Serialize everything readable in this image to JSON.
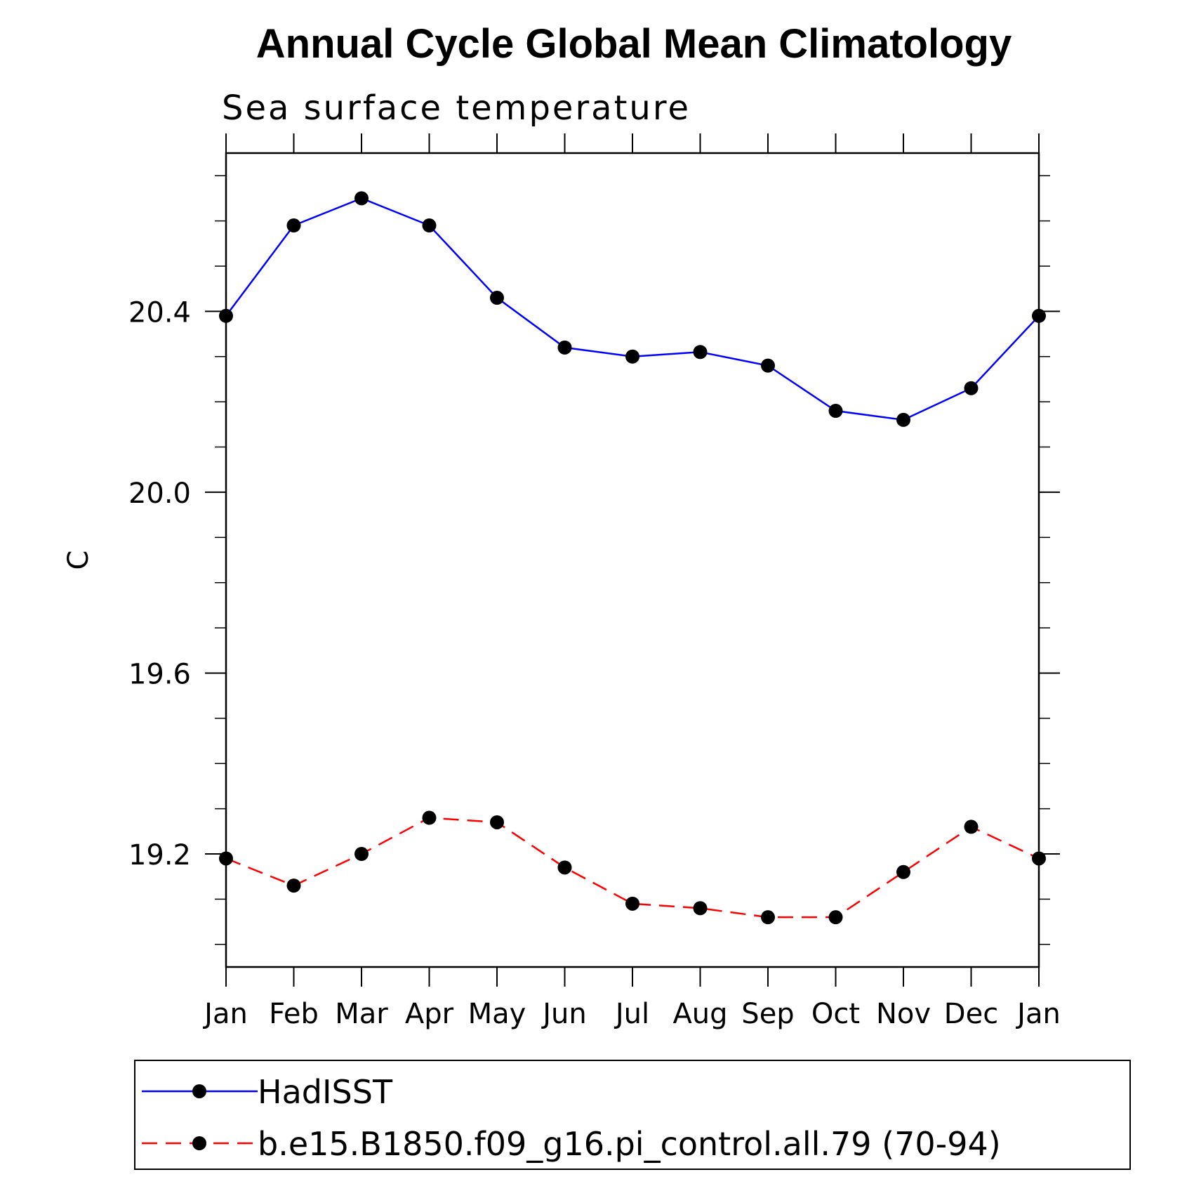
{
  "chart_data": {
    "type": "line",
    "title": "Annual Cycle Global Mean Climatology",
    "subtitle": "Sea surface temperature",
    "ylabel": "C",
    "xlabel": "",
    "categories": [
      "Jan",
      "Feb",
      "Mar",
      "Apr",
      "May",
      "Jun",
      "Jul",
      "Aug",
      "Sep",
      "Oct",
      "Nov",
      "Dec",
      "Jan"
    ],
    "ylim": [
      18.95,
      20.75
    ],
    "yticks": [
      19.2,
      19.6,
      20.0,
      20.4
    ],
    "ytick_labels": [
      "19.2",
      "19.6",
      "20.0",
      "20.4"
    ],
    "y_minor_step": 0.1,
    "grid": false,
    "legend_position": "bottom",
    "series": [
      {
        "name": "HadISST",
        "color": "#0000ff",
        "line_style": "solid",
        "marker": "circle",
        "values": [
          20.39,
          20.59,
          20.65,
          20.59,
          20.43,
          20.32,
          20.3,
          20.31,
          20.28,
          20.18,
          20.16,
          20.23,
          20.39
        ]
      },
      {
        "name": "b.e15.B1850.f09_g16.pi_control.all.79 (70-94)",
        "color": "#ff0000",
        "line_style": "dashed",
        "marker": "circle",
        "values": [
          19.19,
          19.13,
          19.2,
          19.28,
          19.27,
          19.17,
          19.09,
          19.08,
          19.06,
          19.06,
          19.16,
          19.26,
          19.19
        ]
      }
    ]
  }
}
